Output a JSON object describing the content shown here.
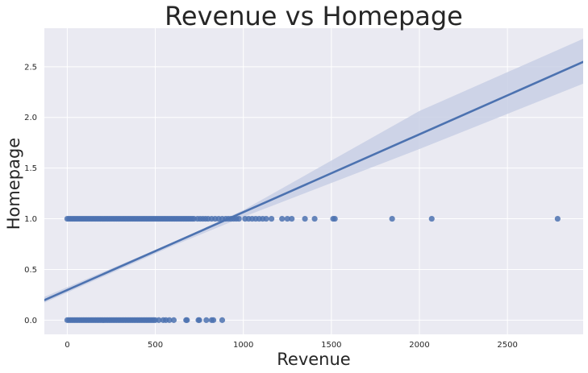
{
  "chart_data": {
    "type": "scatter",
    "title": "Revenue vs Homepage",
    "xlabel": "Revenue",
    "ylabel": "Homepage",
    "xlim": [
      -130,
      2930
    ],
    "ylim": [
      -0.14,
      2.88
    ],
    "xticks": [
      0,
      500,
      1000,
      1500,
      2000,
      2500
    ],
    "yticks": [
      0.0,
      0.5,
      1.0,
      1.5,
      2.0,
      2.5
    ],
    "xtick_labels": [
      "0",
      "500",
      "1000",
      "1500",
      "2000",
      "2500"
    ],
    "ytick_labels": [
      "0.0",
      "0.5",
      "1.0",
      "1.5",
      "2.0",
      "2.5"
    ],
    "grid": true,
    "colors": {
      "background": "#eaeaf2",
      "grid": "#ffffff",
      "points": "#4c72b0",
      "line": "#4c72b0",
      "band": "#c5cde4"
    },
    "regression": {
      "intercept": 0.297,
      "slope": 0.000768,
      "ci_band": [
        {
          "x": -130,
          "lo": 0.172,
          "hi": 0.23
        },
        {
          "x": 600,
          "lo": 0.733,
          "hi": 0.766
        },
        {
          "x": 1000,
          "lo": 1.018,
          "hi": 1.085
        },
        {
          "x": 2000,
          "lo": 1.688,
          "hi": 2.063
        },
        {
          "x": 2930,
          "lo": 2.333,
          "hi": 2.776
        }
      ]
    },
    "series": [
      {
        "points": [
          {
            "x": 0,
            "y": 1
          },
          {
            "x": 10,
            "y": 1
          },
          {
            "x": 20,
            "y": 1
          },
          {
            "x": 30,
            "y": 1
          },
          {
            "x": 40,
            "y": 1
          },
          {
            "x": 50,
            "y": 1
          },
          {
            "x": 60,
            "y": 1
          },
          {
            "x": 70,
            "y": 1
          },
          {
            "x": 80,
            "y": 1
          },
          {
            "x": 90,
            "y": 1
          },
          {
            "x": 100,
            "y": 1
          },
          {
            "x": 110,
            "y": 1
          },
          {
            "x": 120,
            "y": 1
          },
          {
            "x": 130,
            "y": 1
          },
          {
            "x": 140,
            "y": 1
          },
          {
            "x": 150,
            "y": 1
          },
          {
            "x": 160,
            "y": 1
          },
          {
            "x": 170,
            "y": 1
          },
          {
            "x": 180,
            "y": 1
          },
          {
            "x": 190,
            "y": 1
          },
          {
            "x": 200,
            "y": 1
          },
          {
            "x": 210,
            "y": 1
          },
          {
            "x": 220,
            "y": 1
          },
          {
            "x": 230,
            "y": 1
          },
          {
            "x": 240,
            "y": 1
          },
          {
            "x": 250,
            "y": 1
          },
          {
            "x": 260,
            "y": 1
          },
          {
            "x": 270,
            "y": 1
          },
          {
            "x": 280,
            "y": 1
          },
          {
            "x": 290,
            "y": 1
          },
          {
            "x": 300,
            "y": 1
          },
          {
            "x": 310,
            "y": 1
          },
          {
            "x": 320,
            "y": 1
          },
          {
            "x": 330,
            "y": 1
          },
          {
            "x": 340,
            "y": 1
          },
          {
            "x": 350,
            "y": 1
          },
          {
            "x": 360,
            "y": 1
          },
          {
            "x": 370,
            "y": 1
          },
          {
            "x": 380,
            "y": 1
          },
          {
            "x": 390,
            "y": 1
          },
          {
            "x": 400,
            "y": 1
          },
          {
            "x": 410,
            "y": 1
          },
          {
            "x": 420,
            "y": 1
          },
          {
            "x": 430,
            "y": 1
          },
          {
            "x": 440,
            "y": 1
          },
          {
            "x": 450,
            "y": 1
          },
          {
            "x": 460,
            "y": 1
          },
          {
            "x": 470,
            "y": 1
          },
          {
            "x": 480,
            "y": 1
          },
          {
            "x": 490,
            "y": 1
          },
          {
            "x": 500,
            "y": 1
          },
          {
            "x": 510,
            "y": 1
          },
          {
            "x": 520,
            "y": 1
          },
          {
            "x": 530,
            "y": 1
          },
          {
            "x": 540,
            "y": 1
          },
          {
            "x": 550,
            "y": 1
          },
          {
            "x": 560,
            "y": 1
          },
          {
            "x": 570,
            "y": 1
          },
          {
            "x": 580,
            "y": 1
          },
          {
            "x": 590,
            "y": 1
          },
          {
            "x": 600,
            "y": 1
          },
          {
            "x": 610,
            "y": 1
          },
          {
            "x": 620,
            "y": 1
          },
          {
            "x": 630,
            "y": 1
          },
          {
            "x": 640,
            "y": 1
          },
          {
            "x": 650,
            "y": 1
          },
          {
            "x": 660,
            "y": 1
          },
          {
            "x": 670,
            "y": 1
          },
          {
            "x": 680,
            "y": 1
          },
          {
            "x": 690,
            "y": 1
          },
          {
            "x": 700,
            "y": 1
          },
          {
            "x": 710,
            "y": 1
          },
          {
            "x": 720,
            "y": 1
          },
          {
            "x": 740,
            "y": 1
          },
          {
            "x": 755,
            "y": 1
          },
          {
            "x": 770,
            "y": 1
          },
          {
            "x": 785,
            "y": 1
          },
          {
            "x": 800,
            "y": 1
          },
          {
            "x": 820,
            "y": 1
          },
          {
            "x": 840,
            "y": 1
          },
          {
            "x": 860,
            "y": 1
          },
          {
            "x": 880,
            "y": 1
          },
          {
            "x": 900,
            "y": 1
          },
          {
            "x": 915,
            "y": 1
          },
          {
            "x": 930,
            "y": 1
          },
          {
            "x": 945,
            "y": 1
          },
          {
            "x": 960,
            "y": 1
          },
          {
            "x": 975,
            "y": 1
          },
          {
            "x": 1010,
            "y": 1
          },
          {
            "x": 1030,
            "y": 1
          },
          {
            "x": 1050,
            "y": 1
          },
          {
            "x": 1070,
            "y": 1
          },
          {
            "x": 1090,
            "y": 1
          },
          {
            "x": 1110,
            "y": 1
          },
          {
            "x": 1130,
            "y": 1
          },
          {
            "x": 1160,
            "y": 1
          },
          {
            "x": 1220,
            "y": 1
          },
          {
            "x": 1250,
            "y": 1
          },
          {
            "x": 1275,
            "y": 1
          },
          {
            "x": 1350,
            "y": 1
          },
          {
            "x": 1405,
            "y": 1
          },
          {
            "x": 1510,
            "y": 1
          },
          {
            "x": 1520,
            "y": 1
          },
          {
            "x": 1845,
            "y": 1
          },
          {
            "x": 2070,
            "y": 1
          },
          {
            "x": 2785,
            "y": 1
          },
          {
            "x": 0,
            "y": 0
          },
          {
            "x": 10,
            "y": 0
          },
          {
            "x": 20,
            "y": 0
          },
          {
            "x": 30,
            "y": 0
          },
          {
            "x": 40,
            "y": 0
          },
          {
            "x": 50,
            "y": 0
          },
          {
            "x": 60,
            "y": 0
          },
          {
            "x": 70,
            "y": 0
          },
          {
            "x": 80,
            "y": 0
          },
          {
            "x": 90,
            "y": 0
          },
          {
            "x": 100,
            "y": 0
          },
          {
            "x": 110,
            "y": 0
          },
          {
            "x": 120,
            "y": 0
          },
          {
            "x": 130,
            "y": 0
          },
          {
            "x": 140,
            "y": 0
          },
          {
            "x": 150,
            "y": 0
          },
          {
            "x": 160,
            "y": 0
          },
          {
            "x": 170,
            "y": 0
          },
          {
            "x": 180,
            "y": 0
          },
          {
            "x": 190,
            "y": 0
          },
          {
            "x": 200,
            "y": 0
          },
          {
            "x": 210,
            "y": 0
          },
          {
            "x": 220,
            "y": 0
          },
          {
            "x": 230,
            "y": 0
          },
          {
            "x": 240,
            "y": 0
          },
          {
            "x": 250,
            "y": 0
          },
          {
            "x": 260,
            "y": 0
          },
          {
            "x": 270,
            "y": 0
          },
          {
            "x": 280,
            "y": 0
          },
          {
            "x": 290,
            "y": 0
          },
          {
            "x": 300,
            "y": 0
          },
          {
            "x": 310,
            "y": 0
          },
          {
            "x": 320,
            "y": 0
          },
          {
            "x": 330,
            "y": 0
          },
          {
            "x": 340,
            "y": 0
          },
          {
            "x": 350,
            "y": 0
          },
          {
            "x": 360,
            "y": 0
          },
          {
            "x": 370,
            "y": 0
          },
          {
            "x": 380,
            "y": 0
          },
          {
            "x": 390,
            "y": 0
          },
          {
            "x": 400,
            "y": 0
          },
          {
            "x": 410,
            "y": 0
          },
          {
            "x": 420,
            "y": 0
          },
          {
            "x": 430,
            "y": 0
          },
          {
            "x": 440,
            "y": 0
          },
          {
            "x": 450,
            "y": 0
          },
          {
            "x": 460,
            "y": 0
          },
          {
            "x": 470,
            "y": 0
          },
          {
            "x": 480,
            "y": 0
          },
          {
            "x": 490,
            "y": 0
          },
          {
            "x": 500,
            "y": 0
          },
          {
            "x": 520,
            "y": 0
          },
          {
            "x": 545,
            "y": 0
          },
          {
            "x": 560,
            "y": 0
          },
          {
            "x": 580,
            "y": 0
          },
          {
            "x": 605,
            "y": 0
          },
          {
            "x": 675,
            "y": 0
          },
          {
            "x": 680,
            "y": 0
          },
          {
            "x": 745,
            "y": 0
          },
          {
            "x": 750,
            "y": 0
          },
          {
            "x": 790,
            "y": 0
          },
          {
            "x": 820,
            "y": 0
          },
          {
            "x": 830,
            "y": 0
          },
          {
            "x": 880,
            "y": 0
          }
        ]
      }
    ]
  }
}
